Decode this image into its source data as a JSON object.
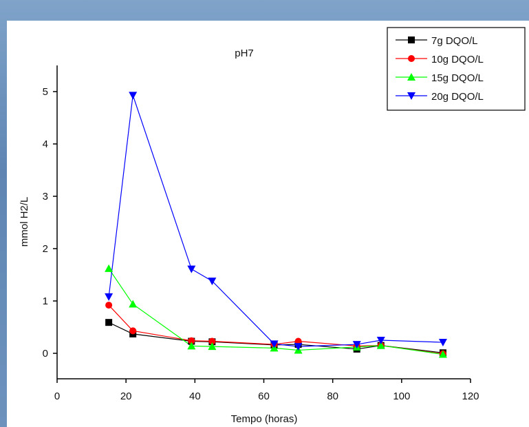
{
  "chart_data": {
    "type": "line",
    "title": "pH7",
    "x_label": "Tempo (horas)",
    "y_label": "mmol H2/L",
    "x": [
      15,
      22,
      39,
      45,
      63,
      70,
      87,
      94,
      112
    ],
    "series": [
      {
        "name": "7g DQO/L",
        "color": "#000000",
        "marker": "square",
        "values": [
          0.59,
          0.37,
          0.23,
          0.22,
          0.16,
          0.17,
          0.08,
          0.15,
          0.01
        ]
      },
      {
        "name": "10g DQO/L",
        "color": "#ff0000",
        "marker": "circle",
        "values": [
          0.92,
          0.43,
          0.24,
          0.23,
          0.17,
          0.23,
          0.14,
          0.15,
          -0.01
        ]
      },
      {
        "name": "15g DQO/L",
        "color": "#00ff00",
        "marker": "triangle-up",
        "values": [
          1.62,
          0.94,
          0.14,
          0.13,
          0.1,
          0.06,
          0.12,
          0.15,
          -0.02
        ]
      },
      {
        "name": "20g DQO/L",
        "color": "#0000ff",
        "marker": "triangle-down",
        "values": [
          1.08,
          4.93,
          1.61,
          1.38,
          0.18,
          0.13,
          0.17,
          0.25,
          0.21
        ]
      }
    ],
    "xlim": [
      0,
      120
    ],
    "xticks": [
      0,
      20,
      40,
      60,
      80,
      100,
      120
    ],
    "ylim": [
      -0.5,
      5.5
    ],
    "yticks": [
      0,
      1,
      2,
      3,
      4,
      5
    ],
    "legend": "upper right"
  }
}
